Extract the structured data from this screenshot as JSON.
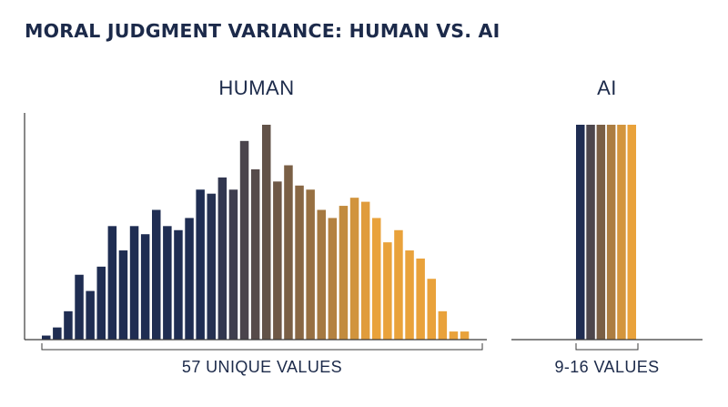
{
  "title": "MORAL JUDGMENT VARIANCE: HUMAN VS. AI",
  "colors": {
    "navy": "#1f2d52",
    "brown": "#7a5f45",
    "gold": "#e9a23b",
    "axis": "#3a3a3a"
  },
  "chart_data": [
    {
      "type": "bar",
      "title": "HUMAN",
      "annotation": "57 UNIQUE VALUES",
      "grid": false,
      "values": [
        1,
        3,
        7,
        16,
        12,
        18,
        28,
        22,
        28,
        26,
        32,
        28,
        27,
        30,
        37,
        36,
        40,
        37,
        49,
        42,
        53,
        39,
        43,
        38,
        37,
        32,
        30,
        33,
        35,
        34,
        30,
        24,
        27,
        22,
        20,
        15,
        7,
        2,
        2
      ]
    },
    {
      "type": "bar",
      "title": "AI",
      "annotation": "9-16 VALUES",
      "grid": false,
      "values": [
        53,
        53,
        53,
        53,
        53,
        53
      ]
    }
  ]
}
